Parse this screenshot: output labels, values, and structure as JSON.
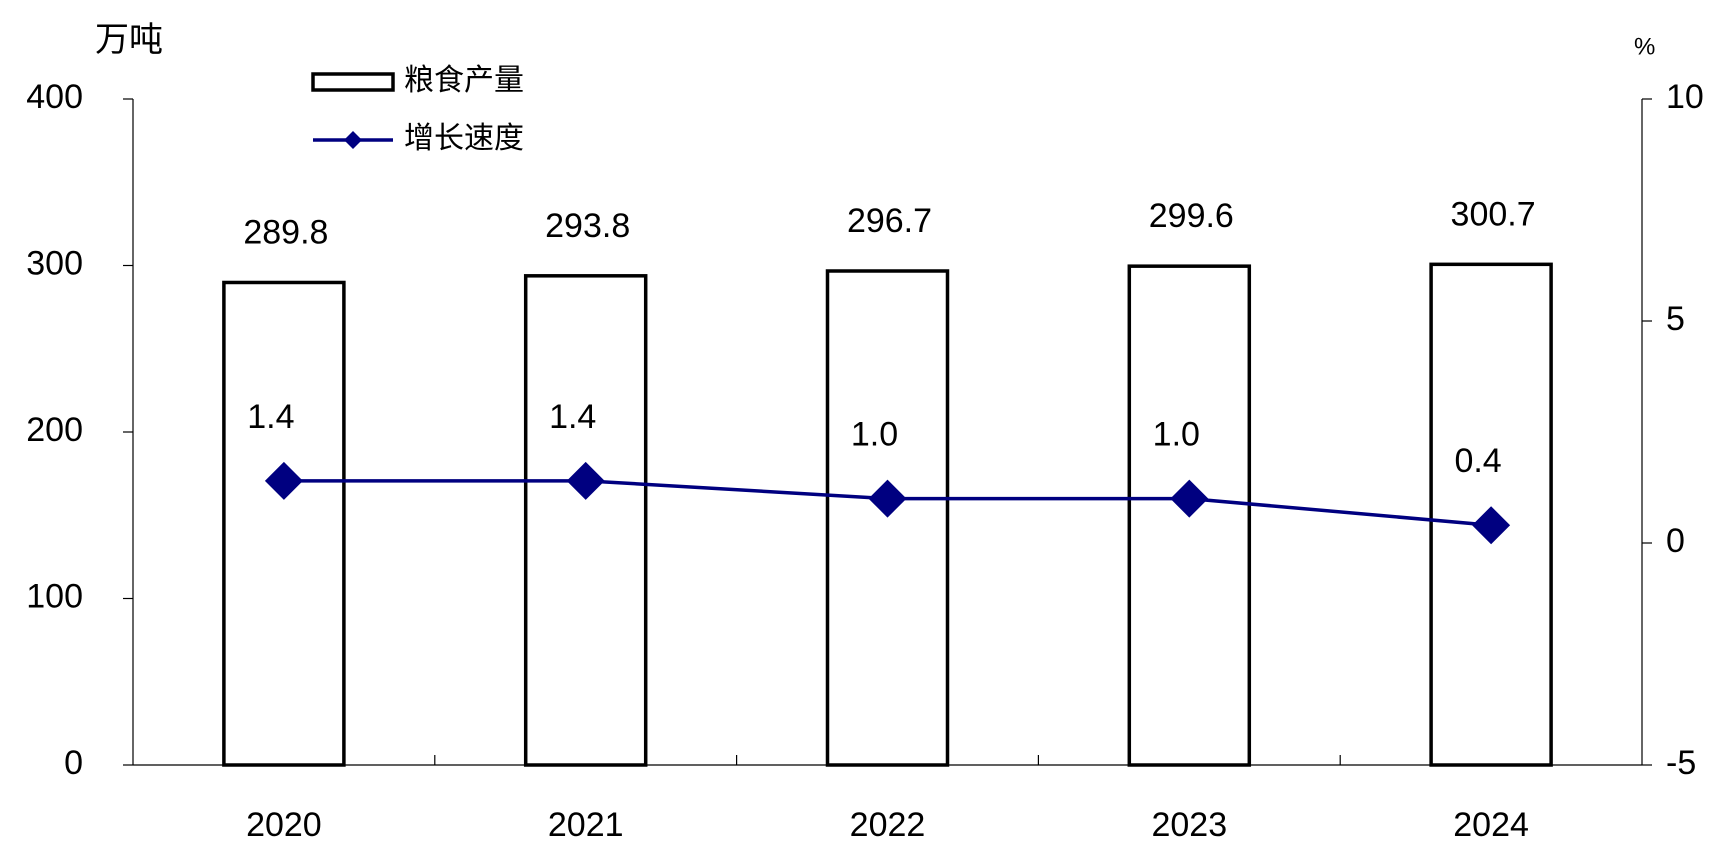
{
  "chart_data": {
    "type": "bar",
    "y_label": "万吨",
    "y2_label": "%",
    "categories": [
      "2020",
      "2021",
      "2022",
      "2023",
      "2024"
    ],
    "series": [
      {
        "name": "粮食产量",
        "type": "bar",
        "color": "#ffffff",
        "values": [
          289.8,
          293.8,
          296.7,
          299.6,
          300.7
        ]
      },
      {
        "name": "增长速度",
        "type": "line",
        "axis": "y2",
        "color": "#000080",
        "values": [
          1.4,
          1.4,
          1.0,
          1.0,
          0.4
        ],
        "value_labels": [
          "1.4",
          "1.4",
          "1.0",
          "1.0",
          "0.4"
        ]
      }
    ],
    "ylim": [
      0,
      400
    ],
    "yticks": [
      0,
      100,
      200,
      300,
      400
    ],
    "y2lim": [
      -5,
      10
    ],
    "y2ticks": [
      -5,
      0,
      5,
      10
    ],
    "legend": "top-left",
    "grid": false
  }
}
